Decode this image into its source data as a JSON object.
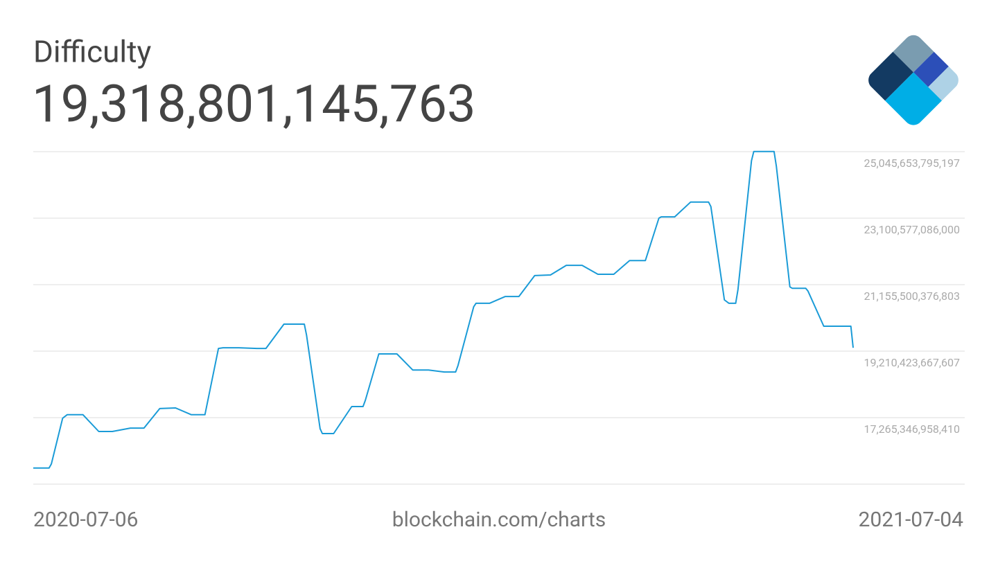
{
  "chart_data": {
    "type": "line",
    "title": "Difficulty",
    "headline": "19,318,801,145,763",
    "source": "blockchain.com/charts",
    "x": [
      "2020-07-06",
      "2020-07-13",
      "2020-07-14",
      "2020-07-19",
      "2020-07-21",
      "2020-07-28",
      "2020-08-04",
      "2020-08-10",
      "2020-08-18",
      "2020-08-24",
      "2020-08-31",
      "2020-09-07",
      "2020-09-14",
      "2020-09-20",
      "2020-09-26",
      "2020-09-28",
      "2020-10-05",
      "2020-10-13",
      "2020-10-17",
      "2020-10-25",
      "2020-11-03",
      "2020-11-04",
      "2020-11-10",
      "2020-11-11",
      "2020-11-16",
      "2020-11-24",
      "2020-11-29",
      "2020-11-30",
      "2020-12-06",
      "2020-12-14",
      "2020-12-21",
      "2020-12-28",
      "2021-01-04",
      "2021-01-09",
      "2021-01-10",
      "2021-01-17",
      "2021-01-18",
      "2021-01-24",
      "2021-01-31",
      "2021-02-06",
      "2021-02-13",
      "2021-02-20",
      "2021-02-27",
      "2021-03-06",
      "2021-03-13",
      "2021-03-20",
      "2021-03-27",
      "2021-04-03",
      "2021-04-09",
      "2021-04-10",
      "2021-04-16",
      "2021-04-23",
      "2021-05-01",
      "2021-05-02",
      "2021-05-08",
      "2021-05-10",
      "2021-05-13",
      "2021-05-14",
      "2021-05-20",
      "2021-05-21",
      "2021-05-30",
      "2021-05-31",
      "2021-06-06",
      "2021-06-07",
      "2021-06-13",
      "2021-06-14",
      "2021-06-21",
      "2021-07-03",
      "2021-07-04"
    ],
    "series": [
      {
        "name": "Difficulty",
        "color": "#1a9bd7",
        "values": [
          15790000000000,
          15790000000000,
          15910000000000,
          17250000000000,
          17350000000000,
          17350000000000,
          16860000000000,
          16860000000000,
          16960000000000,
          16960000000000,
          17530000000000,
          17550000000000,
          17350000000000,
          17350000000000,
          19290000000000,
          19310000000000,
          19310000000000,
          19290000000000,
          19290000000000,
          20000000000000,
          20000000000000,
          19680000000000,
          16940000000000,
          16800000000000,
          16800000000000,
          17590000000000,
          17590000000000,
          17770000000000,
          19130000000000,
          19130000000000,
          18660000000000,
          18660000000000,
          18600000000000,
          18600000000000,
          18780000000000,
          20510000000000,
          20610000000000,
          20610000000000,
          20810000000000,
          20810000000000,
          21420000000000,
          21440000000000,
          21720000000000,
          21720000000000,
          21460000000000,
          21460000000000,
          21860000000000,
          21860000000000,
          23100000000000,
          23140000000000,
          23140000000000,
          23570000000000,
          23570000000000,
          23440000000000,
          20710000000000,
          20610000000000,
          20610000000000,
          21010000000000,
          24780000000000,
          25050000000000,
          25050000000000,
          24620000000000,
          21090000000000,
          21050000000000,
          21050000000000,
          20970000000000,
          19940000000000,
          19940000000000,
          19310000000000
        ]
      }
    ],
    "xlim": [
      "2020-07-06",
      "2021-07-04"
    ],
    "ylim": [
      15320270249213,
      25045653795197
    ],
    "yticks": [
      {
        "value": 17265346958410,
        "label": "17,265,346,958,410"
      },
      {
        "value": 19210423667607,
        "label": "19,210,423,667,607"
      },
      {
        "value": 21155500376803,
        "label": "21,155,500,376,803"
      },
      {
        "value": 23100577086000,
        "label": "23,100,577,086,000"
      },
      {
        "value": 25045653795197,
        "label": "25,045,653,795,197"
      }
    ],
    "grid": true
  }
}
